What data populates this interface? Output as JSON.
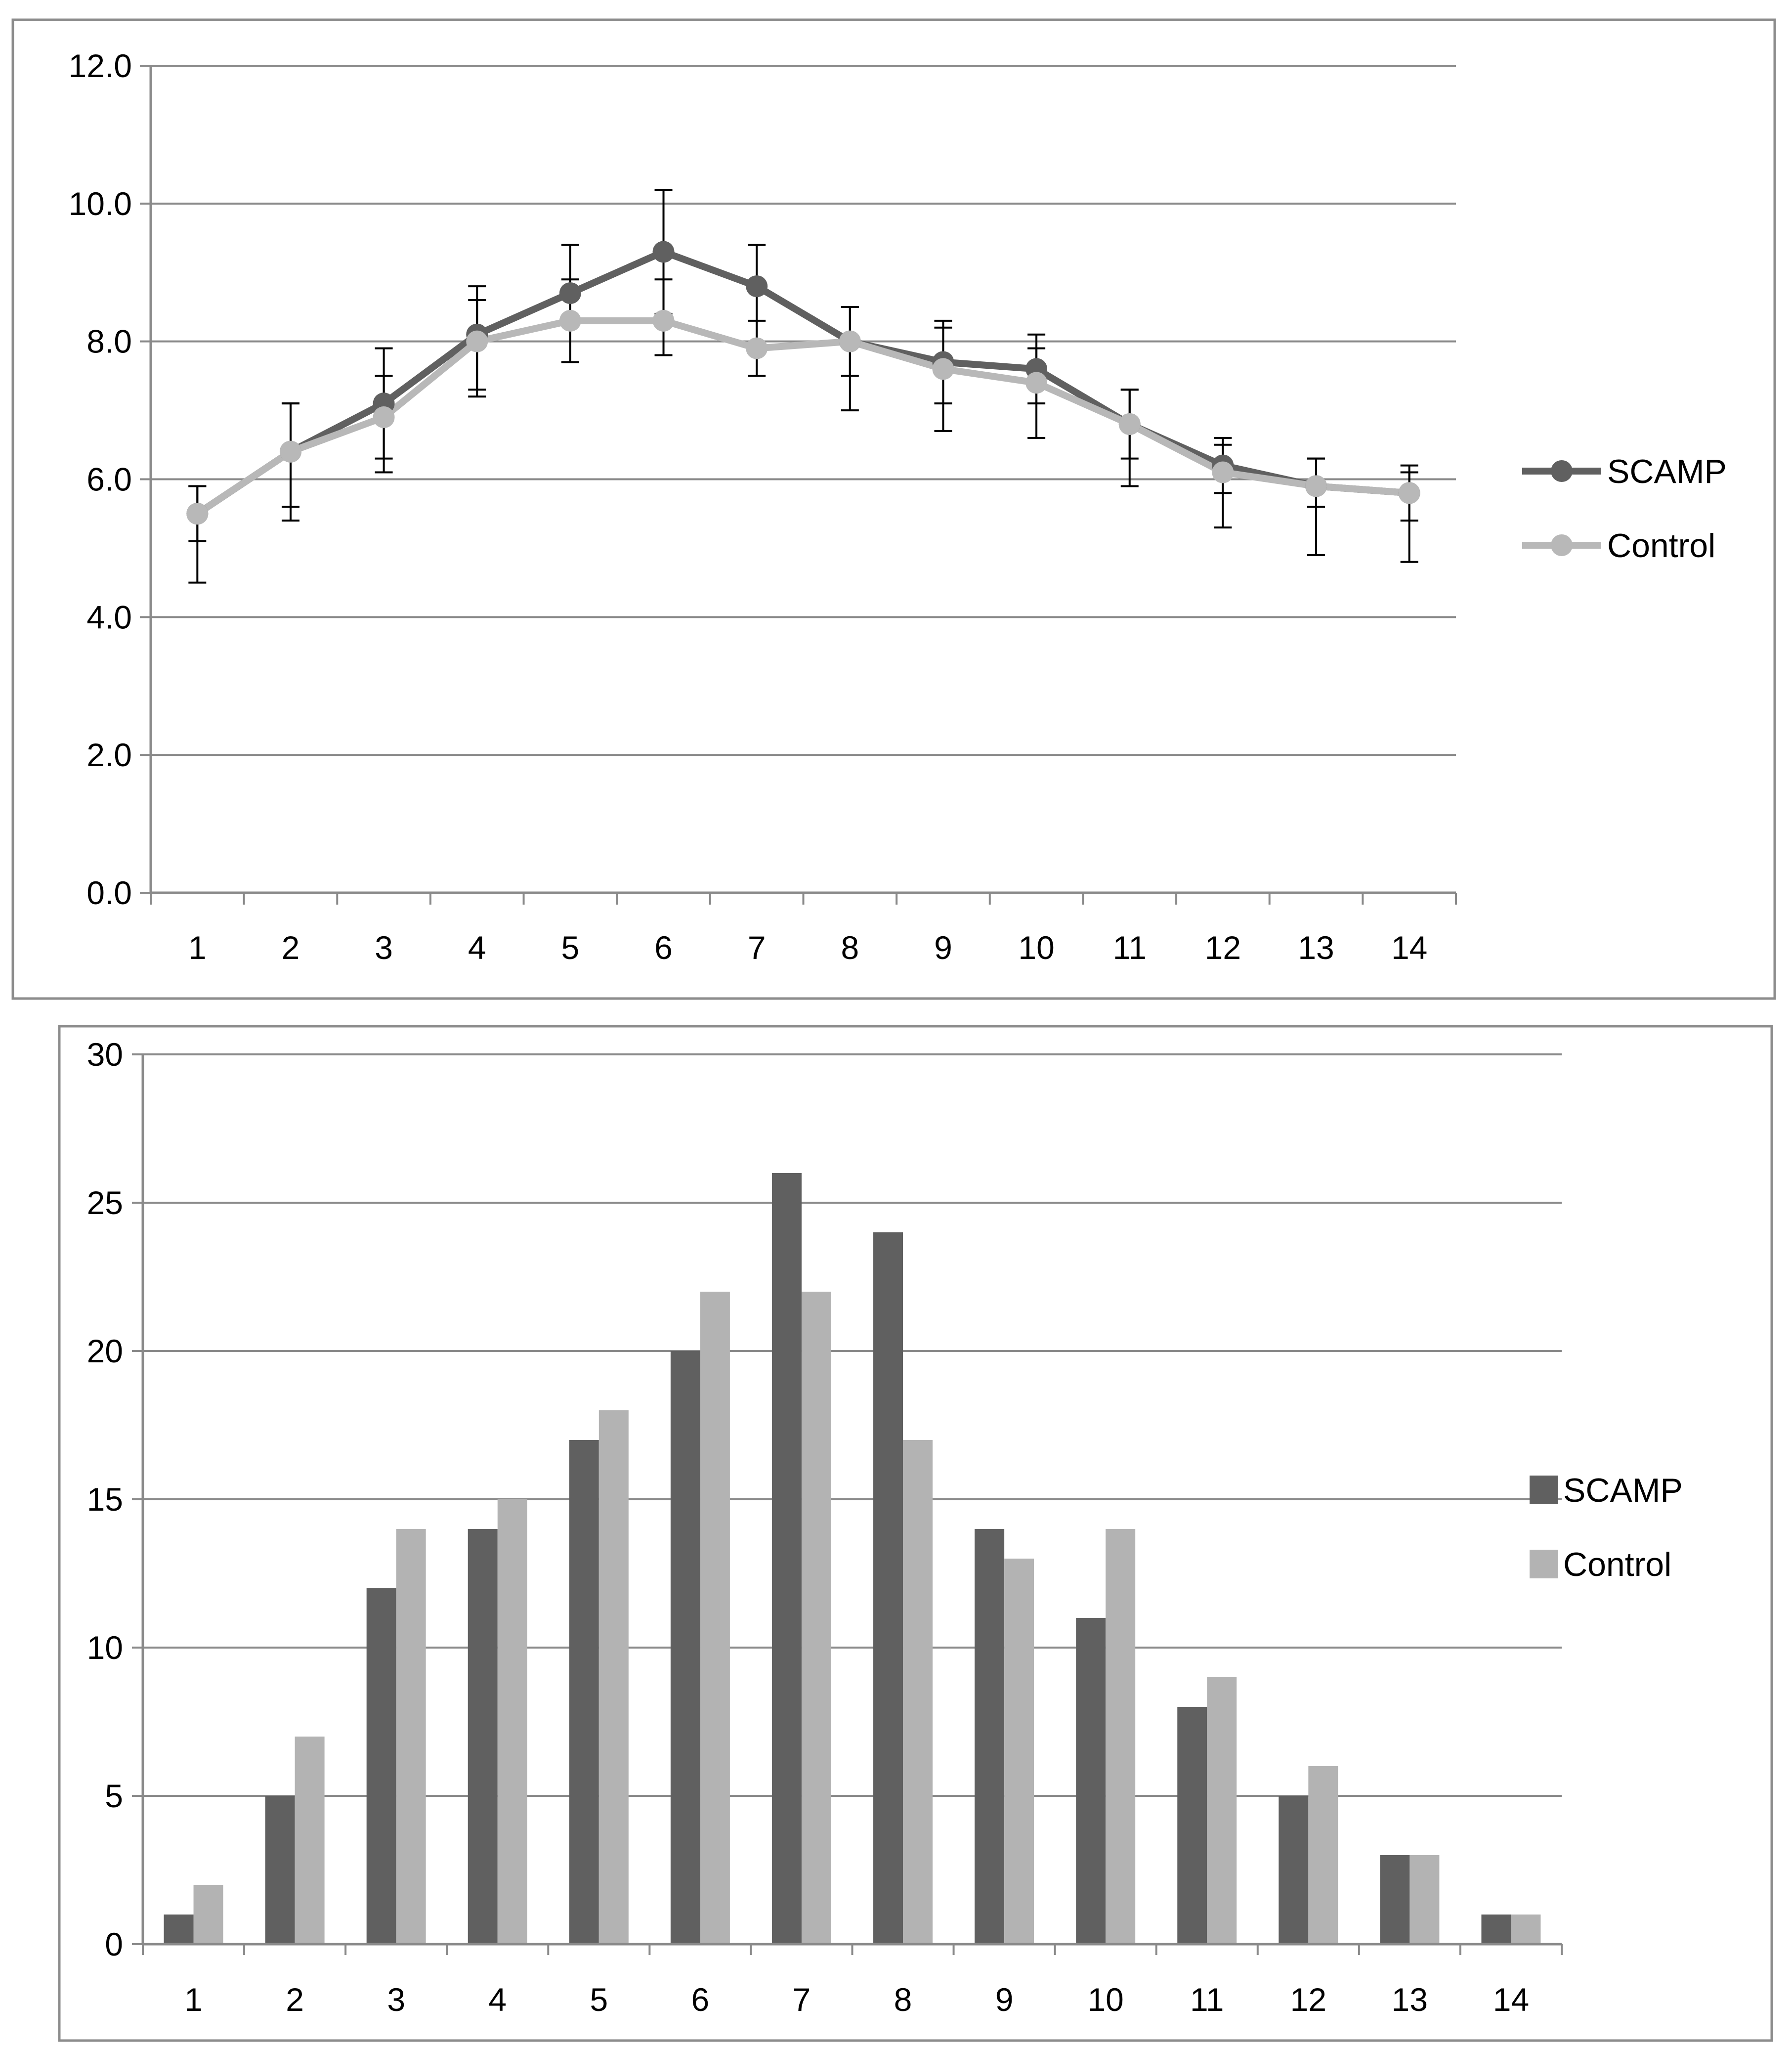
{
  "chart_data": [
    {
      "type": "line",
      "title": "",
      "xlabel": "",
      "ylabel": "",
      "categories": [
        "1",
        "2",
        "3",
        "4",
        "5",
        "6",
        "7",
        "8",
        "9",
        "10",
        "11",
        "12",
        "13",
        "14"
      ],
      "ylim": [
        0,
        12
      ],
      "ytick_labels": [
        "0.0",
        "2.0",
        "4.0",
        "6.0",
        "8.0",
        "10.0",
        "12.0"
      ],
      "grid": true,
      "legend_position": "right",
      "series": [
        {
          "name": "SCAMP",
          "color": "#606060",
          "values": [
            5.5,
            6.4,
            7.1,
            8.1,
            8.7,
            9.3,
            8.8,
            8.0,
            7.7,
            7.6,
            6.8,
            6.2,
            5.9,
            5.8
          ],
          "error_low": [
            4.5,
            5.4,
            6.3,
            7.3,
            7.7,
            8.4,
            7.9,
            7.5,
            7.1,
            7.1,
            6.3,
            5.8,
            5.6,
            5.4
          ],
          "error_high": [
            5.9,
            7.1,
            7.9,
            8.8,
            9.4,
            10.2,
            9.4,
            8.5,
            8.3,
            8.1,
            7.3,
            6.6,
            6.3,
            6.2
          ]
        },
        {
          "name": "Control",
          "color": "#b8b8b8",
          "values": [
            5.5,
            6.4,
            6.9,
            8.0,
            8.3,
            8.3,
            7.9,
            8.0,
            7.6,
            7.4,
            6.8,
            6.1,
            5.9,
            5.8
          ],
          "error_low": [
            5.1,
            5.6,
            6.1,
            7.2,
            7.7,
            7.8,
            7.5,
            7.0,
            6.7,
            6.6,
            5.9,
            5.3,
            4.9,
            4.8
          ],
          "error_high": [
            5.9,
            7.1,
            7.5,
            8.6,
            8.9,
            8.9,
            8.3,
            8.5,
            8.2,
            7.9,
            7.3,
            6.5,
            6.3,
            6.1
          ]
        }
      ]
    },
    {
      "type": "bar",
      "title": "",
      "xlabel": "",
      "ylabel": "",
      "categories": [
        "1",
        "2",
        "3",
        "4",
        "5",
        "6",
        "7",
        "8",
        "9",
        "10",
        "11",
        "12",
        "13",
        "14"
      ],
      "ylim": [
        0,
        30
      ],
      "ytick_labels": [
        "0",
        "5",
        "10",
        "15",
        "20",
        "25",
        "30"
      ],
      "grid": true,
      "legend_position": "right",
      "series": [
        {
          "name": "SCAMP",
          "color": "#606060",
          "values": [
            1,
            5,
            12,
            14,
            17,
            20,
            26,
            24,
            14,
            11,
            8,
            5,
            3,
            1
          ]
        },
        {
          "name": "Control",
          "color": "#b3b3b3",
          "values": [
            2,
            7,
            14,
            15,
            18,
            22,
            22,
            17,
            13,
            14,
            9,
            6,
            3,
            1
          ]
        }
      ]
    }
  ]
}
